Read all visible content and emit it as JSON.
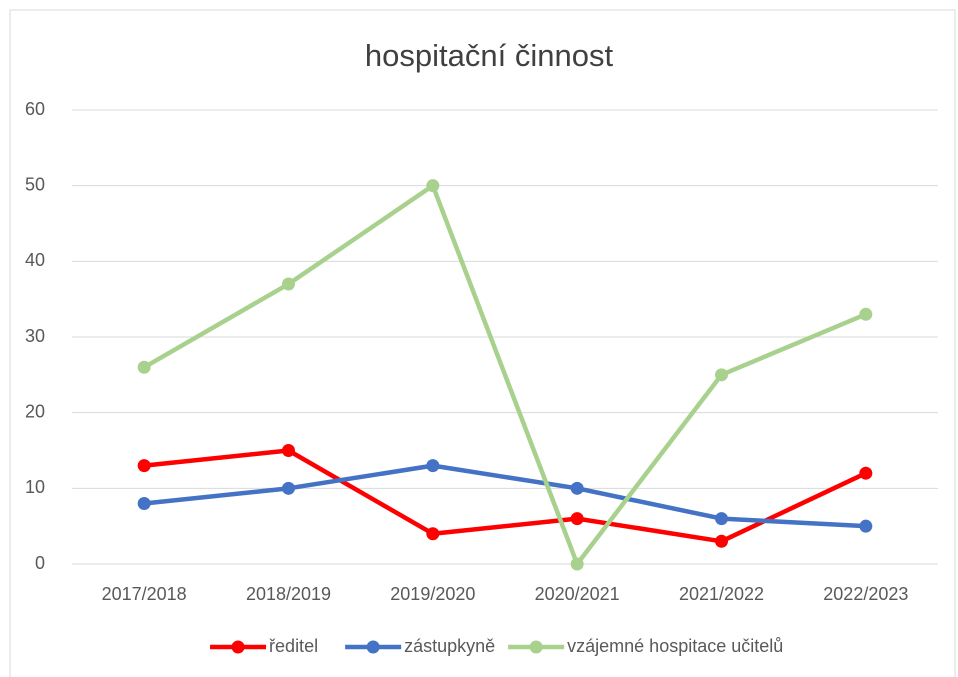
{
  "chart_data": {
    "type": "line",
    "title": "hospitační činnost",
    "categories": [
      "2017/2018",
      "2018/2019",
      "2019/2020",
      "2020/2021",
      "2021/2022",
      "2022/2023"
    ],
    "series": [
      {
        "name": "ředitel",
        "color": "#ff0000",
        "values": [
          13,
          15,
          4,
          6,
          3,
          12
        ]
      },
      {
        "name": "zástupkyně",
        "color": "#4472c4",
        "values": [
          8,
          10,
          13,
          10,
          6,
          5
        ]
      },
      {
        "name": "vzájemné hospitace učitelů",
        "color": "#a9d18e",
        "values": [
          26,
          37,
          50,
          0,
          25,
          33
        ]
      }
    ],
    "ylim": [
      0,
      60
    ],
    "yticks": [
      0,
      10,
      20,
      30,
      40,
      50,
      60
    ],
    "grid": true,
    "legend": "bottom"
  }
}
